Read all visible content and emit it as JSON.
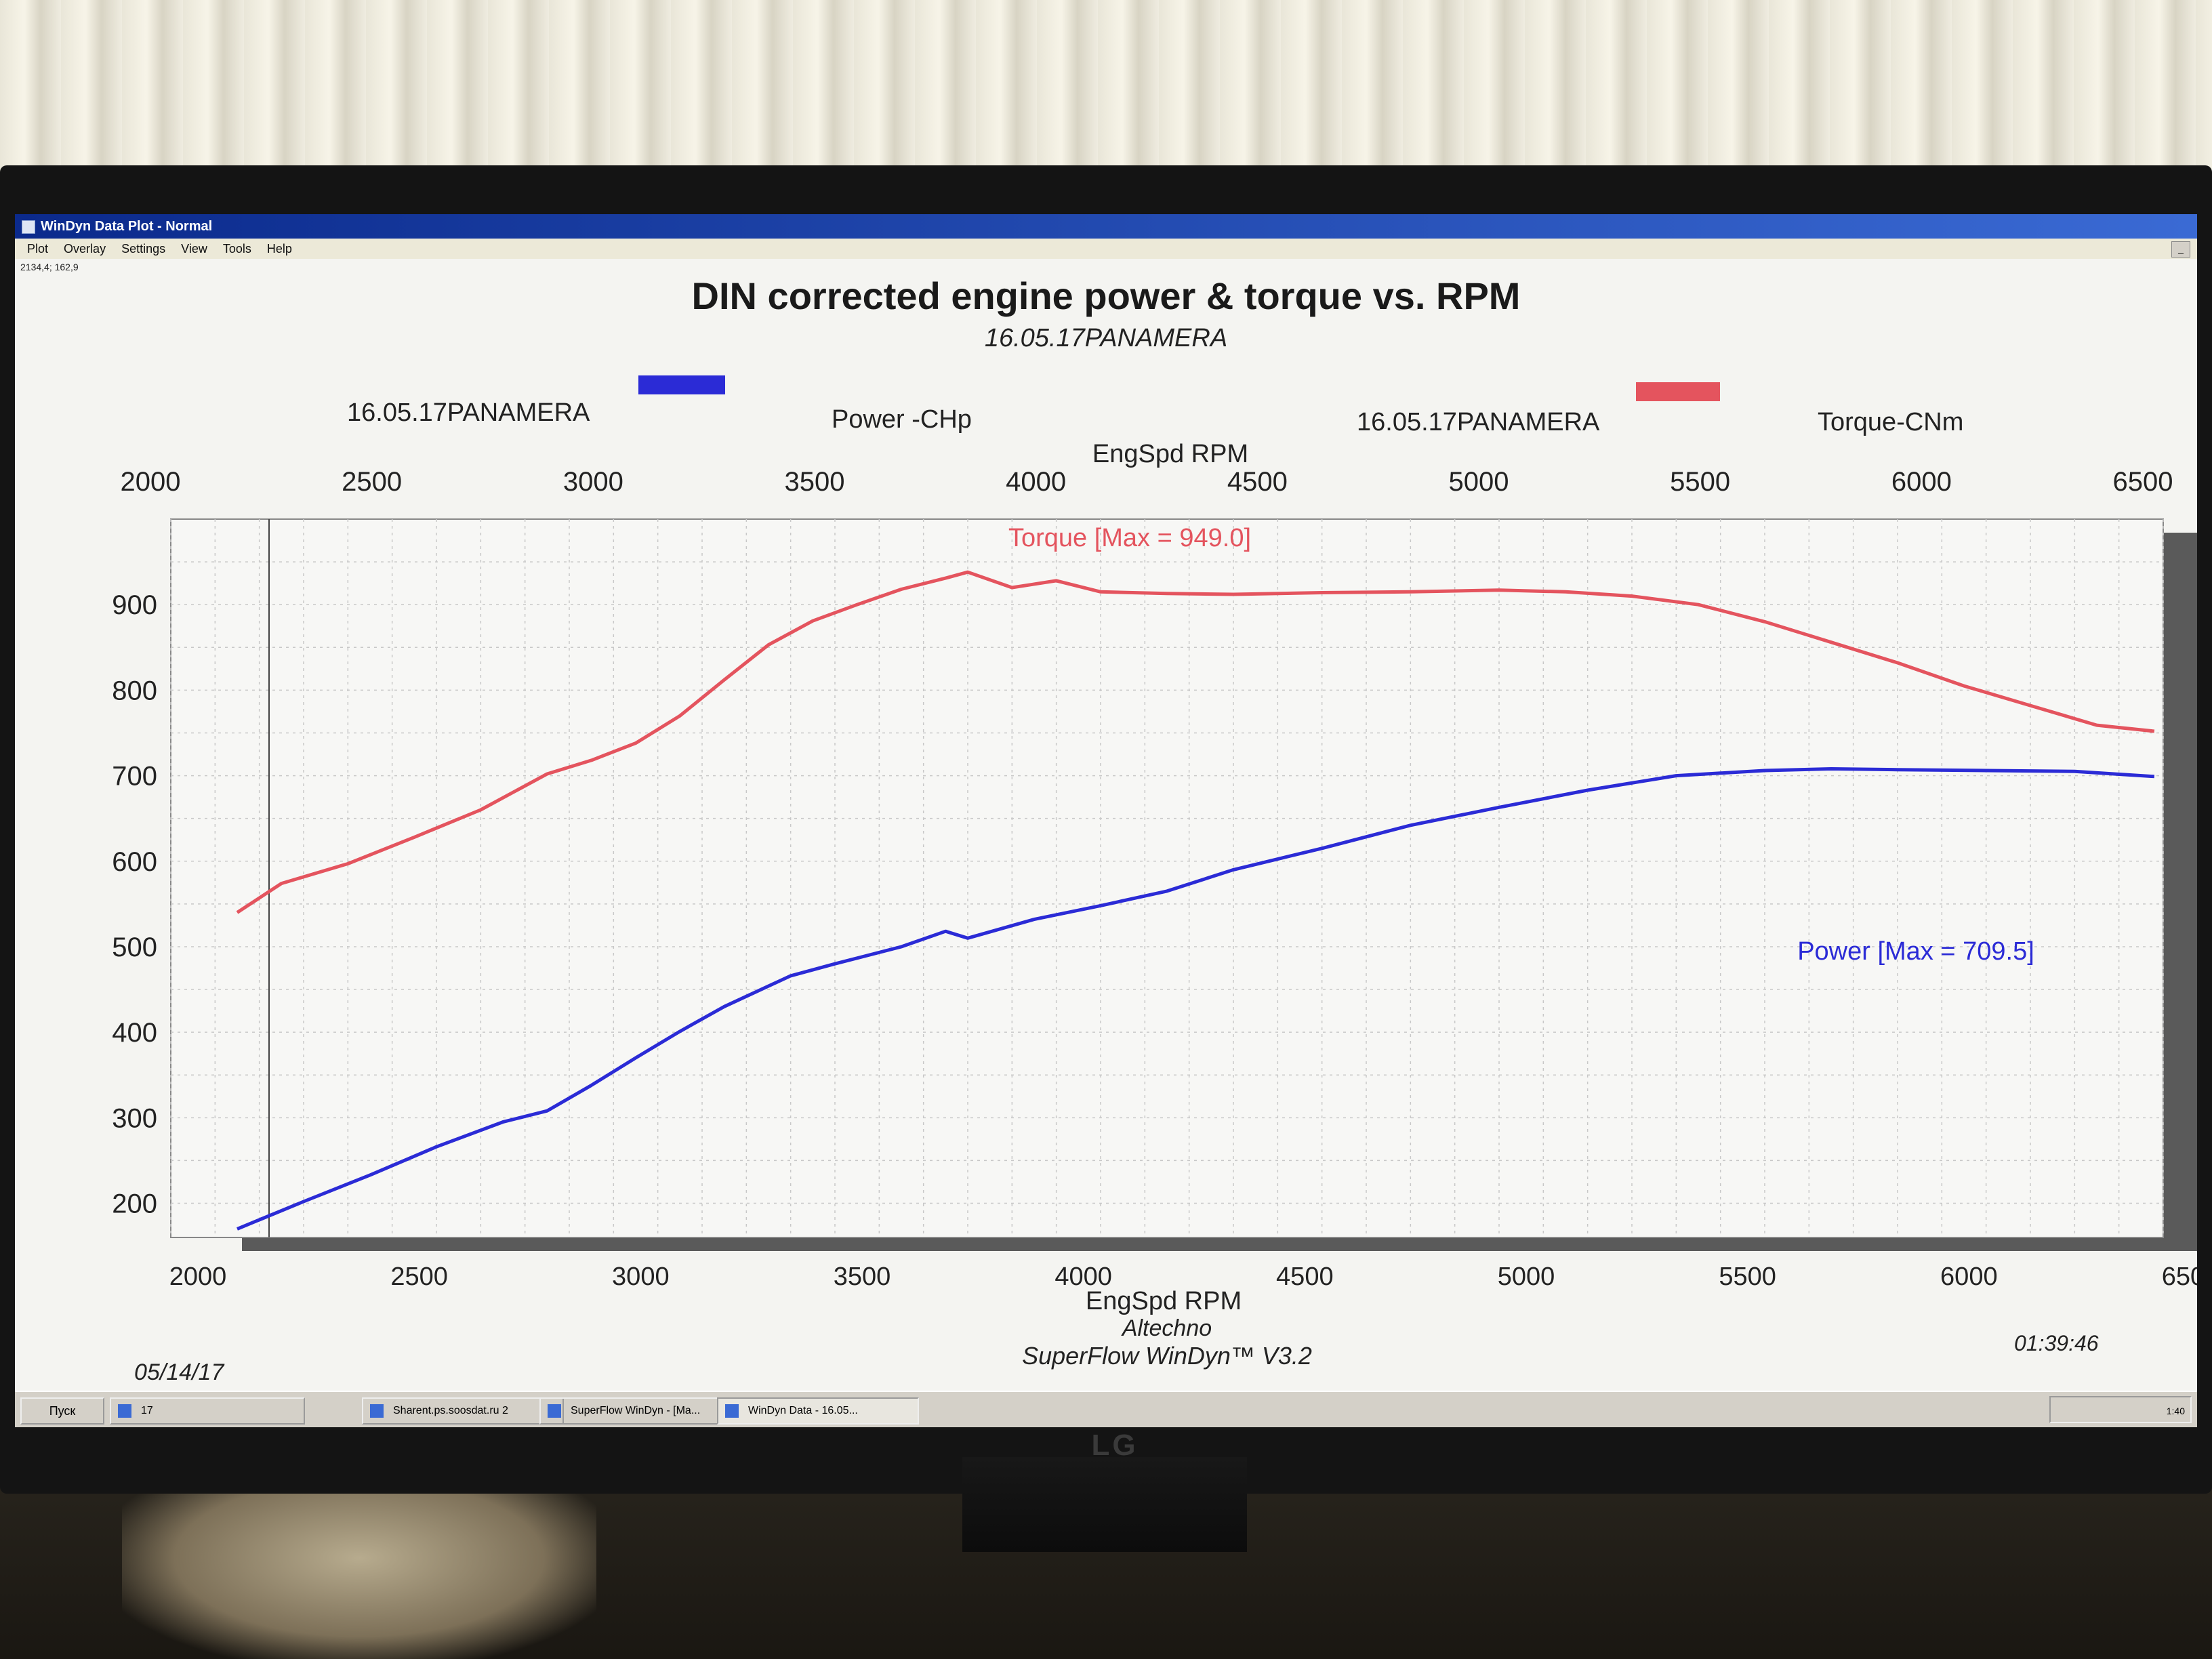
{
  "window": {
    "title": "WinDyn Data Plot - Normal",
    "menu": [
      "Plot",
      "Overlay",
      "Settings",
      "View",
      "Tools",
      "Help"
    ],
    "cursor_readout": "2134,4; 162,9"
  },
  "header": {
    "title": "DIN corrected engine power & torque vs. RPM",
    "run_name": "16.05.17PANAMERA"
  },
  "legend": {
    "power": {
      "run": "16.05.17PANAMERA",
      "label": "Power -CHp",
      "color": "#2b2bd6"
    },
    "torque": {
      "run": "16.05.17PANAMERA",
      "label": "Torque-CNm",
      "color": "#e4545e"
    }
  },
  "footer": {
    "company": "Altechno",
    "software": "SuperFlow WinDyn™ V3.2",
    "date": "05/14/17",
    "time": "01:39:46"
  },
  "taskbar": {
    "start_label": "Пуск",
    "items": [
      "17",
      "Sharent.ps.soosdat.ru 2",
      "SuperFlow WinDyn - [Ma...",
      "WinDyn Data - 16.05..."
    ],
    "tray_text": "1:40"
  },
  "chart_data": {
    "type": "line",
    "title": "DIN corrected engine power & torque vs. RPM",
    "subtitle": "16.05.17PANAMERA",
    "xlabel": "EngSpd RPM",
    "ylabel": "",
    "xlim": [
      2000,
      6500
    ],
    "ylim": [
      160,
      1000
    ],
    "x_ticks": [
      "2000",
      "2500",
      "3000",
      "3500",
      "4000",
      "4500",
      "5000",
      "5500",
      "6000",
      "6500"
    ],
    "y_ticks": [
      "200",
      "300",
      "400",
      "500",
      "600",
      "700",
      "800",
      "900"
    ],
    "grid": true,
    "series": [
      {
        "name": "Torque-CNm",
        "color": "#e4545e",
        "annotation": "Torque [Max = 949.0]",
        "x": [
          2150,
          2250,
          2400,
          2550,
          2700,
          2850,
          2950,
          3050,
          3150,
          3250,
          3350,
          3450,
          3550,
          3650,
          3750,
          3800,
          3900,
          4000,
          4100,
          4250,
          4400,
          4600,
          4800,
          5000,
          5150,
          5300,
          5450,
          5600,
          5750,
          5900,
          6050,
          6200,
          6350,
          6480
        ],
        "y": [
          540,
          574,
          597,
          628,
          660,
          702,
          718,
          738,
          770,
          812,
          853,
          881,
          900,
          918,
          931,
          938,
          920,
          928,
          915,
          913,
          912,
          914,
          915,
          917,
          915,
          910,
          900,
          880,
          856,
          832,
          805,
          782,
          759,
          752
        ]
      },
      {
        "name": "Power -CHp",
        "color": "#2b2bd6",
        "annotation": "Power  [Max = 709.5]",
        "x": [
          2150,
          2300,
          2450,
          2600,
          2750,
          2850,
          2950,
          3050,
          3150,
          3250,
          3400,
          3500,
          3650,
          3750,
          3800,
          3950,
          4100,
          4250,
          4400,
          4600,
          4800,
          5000,
          5200,
          5400,
          5600,
          5750,
          5900,
          6100,
          6300,
          6480
        ],
        "y": [
          170,
          202,
          233,
          266,
          295,
          308,
          338,
          370,
          401,
          430,
          466,
          480,
          500,
          518,
          510,
          532,
          548,
          565,
          590,
          615,
          642,
          663,
          683,
          700,
          706,
          708,
          707,
          706,
          705,
          699
        ]
      }
    ]
  }
}
